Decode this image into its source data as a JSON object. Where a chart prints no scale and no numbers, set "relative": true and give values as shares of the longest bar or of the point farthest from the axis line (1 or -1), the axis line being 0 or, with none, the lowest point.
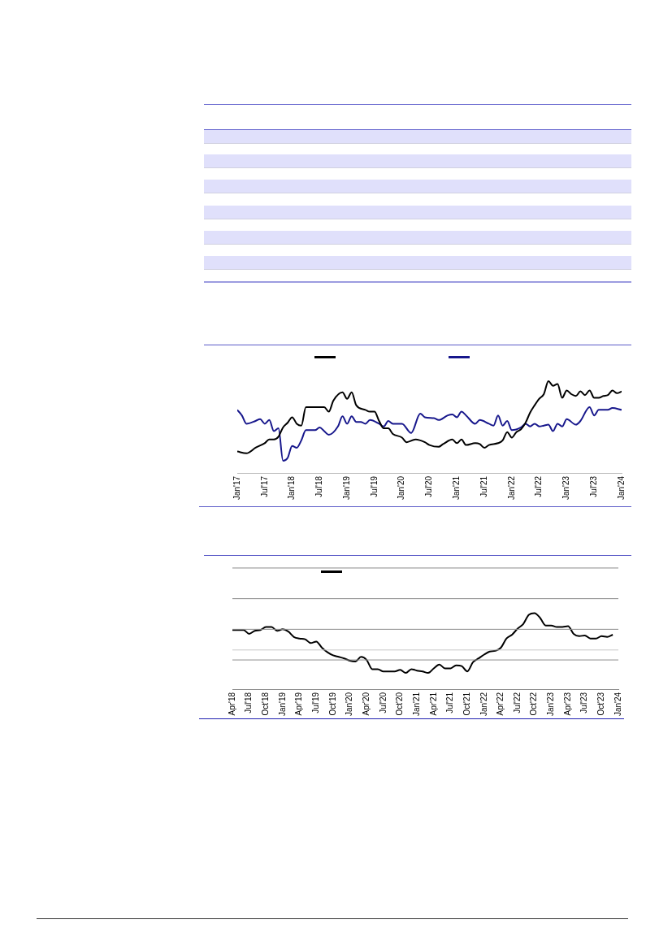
{
  "chart_data": [
    {
      "type": "line",
      "relative": true,
      "marker": "none",
      "line_style": "solid",
      "xlim": [
        "2017-01",
        "2024-01"
      ],
      "xticks": [
        {
          "value": "2017-01",
          "label": "Jan'17"
        },
        {
          "value": "2017-07",
          "label": "Jul'17"
        },
        {
          "value": "2018-01",
          "label": "Jan'18"
        },
        {
          "value": "2018-07",
          "label": "Jul'18"
        },
        {
          "value": "2019-01",
          "label": "Jan'19"
        },
        {
          "value": "2019-07",
          "label": "Jul'19"
        },
        {
          "value": "2020-01",
          "label": "Jan'20"
        },
        {
          "value": "2020-07",
          "label": "Jul'20"
        },
        {
          "value": "2021-01",
          "label": "Jan'21"
        },
        {
          "value": "2021-07",
          "label": "Jul'21"
        },
        {
          "value": "2022-01",
          "label": "Jan'22"
        },
        {
          "value": "2022-07",
          "label": "Jul'22"
        },
        {
          "value": "2023-01",
          "label": "Jan'23"
        },
        {
          "value": "2023-07",
          "label": "Jul'23"
        },
        {
          "value": "2024-01",
          "label": "Jan'24"
        }
      ],
      "series": [
        {
          "color": "#000000",
          "x": [
            "2017-01",
            "2017-03",
            "2017-05",
            "2017-07",
            "2017-08",
            "2017-09",
            "2017-10",
            "2017-11",
            "2017-12",
            "2018-01",
            "2018-02",
            "2018-03",
            "2018-04",
            "2018-06",
            "2018-08",
            "2018-09",
            "2018-10",
            "2018-12",
            "2019-01",
            "2019-02",
            "2019-03",
            "2019-05",
            "2019-06",
            "2019-07",
            "2019-08",
            "2019-09",
            "2019-10",
            "2019-11",
            "2020-01",
            "2020-02",
            "2020-04",
            "2020-06",
            "2020-07",
            "2020-09",
            "2020-10",
            "2020-12",
            "2021-01",
            "2021-02",
            "2021-03",
            "2021-05",
            "2021-06",
            "2021-07",
            "2021-08",
            "2021-10",
            "2021-11",
            "2021-12",
            "2022-01",
            "2022-02",
            "2022-03",
            "2022-04",
            "2022-05",
            "2022-06",
            "2022-07",
            "2022-08",
            "2022-09",
            "2022-10",
            "2022-11",
            "2022-12",
            "2023-01",
            "2023-02",
            "2023-03",
            "2023-04",
            "2023-05",
            "2023-06",
            "2023-07",
            "2023-08",
            "2023-09",
            "2023-10",
            "2023-11",
            "2023-12",
            "2024-01"
          ],
          "values": [
            0.24,
            0.22,
            0.28,
            0.33,
            0.37,
            0.37,
            0.4,
            0.5,
            0.55,
            0.61,
            0.54,
            0.52,
            0.72,
            0.72,
            0.72,
            0.67,
            0.79,
            0.88,
            0.81,
            0.88,
            0.74,
            0.69,
            0.67,
            0.67,
            0.57,
            0.49,
            0.49,
            0.43,
            0.39,
            0.34,
            0.37,
            0.34,
            0.31,
            0.29,
            0.32,
            0.37,
            0.33,
            0.37,
            0.31,
            0.33,
            0.32,
            0.28,
            0.31,
            0.33,
            0.36,
            0.45,
            0.39,
            0.45,
            0.48,
            0.55,
            0.66,
            0.74,
            0.81,
            0.86,
            1,
            0.95,
            0.97,
            0.82,
            0.9,
            0.86,
            0.84,
            0.89,
            0.85,
            0.9,
            0.82,
            0.82,
            0.84,
            0.85,
            0.9,
            0.87,
            0.89
          ]
        },
        {
          "color": "#17178c",
          "x": [
            "2017-01",
            "2017-02",
            "2017-03",
            "2017-05",
            "2017-06",
            "2017-07",
            "2017-08",
            "2017-09",
            "2017-10",
            "2017-11",
            "2017-12",
            "2018-01",
            "2018-02",
            "2018-03",
            "2018-04",
            "2018-06",
            "2018-07",
            "2018-08",
            "2018-09",
            "2018-11",
            "2018-12",
            "2019-01",
            "2019-02",
            "2019-03",
            "2019-04",
            "2019-05",
            "2019-06",
            "2019-08",
            "2019-09",
            "2019-10",
            "2019-11",
            "2019-12",
            "2020-01",
            "2020-03",
            "2020-05",
            "2020-06",
            "2020-08",
            "2020-09",
            "2020-11",
            "2020-12",
            "2021-01",
            "2021-02",
            "2021-03",
            "2021-05",
            "2021-06",
            "2021-08",
            "2021-09",
            "2021-10",
            "2021-11",
            "2021-12",
            "2022-01",
            "2022-03",
            "2022-04",
            "2022-05",
            "2022-06",
            "2022-07",
            "2022-08",
            "2022-09",
            "2022-10",
            "2022-11",
            "2022-12",
            "2023-01",
            "2023-03",
            "2023-04",
            "2023-06",
            "2023-07",
            "2023-08",
            "2023-10",
            "2023-11",
            "2024-01"
          ],
          "values": [
            0.69,
            0.63,
            0.54,
            0.57,
            0.59,
            0.54,
            0.58,
            0.46,
            0.49,
            0.14,
            0.17,
            0.3,
            0.28,
            0.36,
            0.47,
            0.47,
            0.5,
            0.46,
            0.42,
            0.51,
            0.62,
            0.54,
            0.62,
            0.56,
            0.56,
            0.54,
            0.58,
            0.54,
            0.51,
            0.57,
            0.54,
            0.54,
            0.54,
            0.44,
            0.65,
            0.61,
            0.6,
            0.58,
            0.63,
            0.64,
            0.61,
            0.67,
            0.63,
            0.54,
            0.58,
            0.54,
            0.52,
            0.63,
            0.52,
            0.57,
            0.47,
            0.5,
            0.54,
            0.51,
            0.54,
            0.51,
            0.52,
            0.53,
            0.46,
            0.54,
            0.51,
            0.59,
            0.53,
            0.57,
            0.72,
            0.63,
            0.69,
            0.69,
            0.71,
            0.69
          ]
        }
      ]
    },
    {
      "type": "line",
      "relative": true,
      "marker": "none",
      "line_style": "solid",
      "xlim": [
        "2018-04",
        "2024-01"
      ],
      "xticks": [
        {
          "value": "2018-04",
          "label": "Apr'18"
        },
        {
          "value": "2018-07",
          "label": "Jul'18"
        },
        {
          "value": "2018-10",
          "label": "Oct'18"
        },
        {
          "value": "2019-01",
          "label": "Jan'19"
        },
        {
          "value": "2019-04",
          "label": "Apr'19"
        },
        {
          "value": "2019-07",
          "label": "Jul'19"
        },
        {
          "value": "2019-10",
          "label": "Oct'19"
        },
        {
          "value": "2020-01",
          "label": "Jan'20"
        },
        {
          "value": "2020-04",
          "label": "Apr'20"
        },
        {
          "value": "2020-07",
          "label": "Jul'20"
        },
        {
          "value": "2020-10",
          "label": "Oct'20"
        },
        {
          "value": "2021-01",
          "label": "Jan'21"
        },
        {
          "value": "2021-04",
          "label": "Apr'21"
        },
        {
          "value": "2021-07",
          "label": "Jul'21"
        },
        {
          "value": "2021-10",
          "label": "Oct'21"
        },
        {
          "value": "2022-01",
          "label": "Jan'22"
        },
        {
          "value": "2022-04",
          "label": "Apr'22"
        },
        {
          "value": "2022-07",
          "label": "Jul'22"
        },
        {
          "value": "2022-10",
          "label": "Oct'22"
        },
        {
          "value": "2023-01",
          "label": "Jan'23"
        },
        {
          "value": "2023-04",
          "label": "Apr'23"
        },
        {
          "value": "2023-07",
          "label": "Jul'23"
        },
        {
          "value": "2023-10",
          "label": "Oct'23"
        },
        {
          "value": "2024-01",
          "label": "Jan'24"
        }
      ],
      "ref_lines": [
        {
          "axis": "y",
          "value": 0.39,
          "color": "#8c8c8c"
        },
        {
          "axis": "y",
          "value": 0.52,
          "color": "#c8c8c8"
        },
        {
          "axis": "y",
          "value": 0.79,
          "color": "#8c8c8c"
        },
        {
          "axis": "y",
          "value": 1.19,
          "color": "#8c8c8c"
        },
        {
          "axis": "y",
          "value": 1.59,
          "color": "#8c8c8c"
        }
      ],
      "series": [
        {
          "color": "#000000",
          "x": [
            "2018-04",
            "2018-05",
            "2018-06",
            "2018-07",
            "2018-08",
            "2018-09",
            "2018-10",
            "2018-11",
            "2018-12",
            "2019-01",
            "2019-02",
            "2019-03",
            "2019-04",
            "2019-05",
            "2019-06",
            "2019-07",
            "2019-08",
            "2019-09",
            "2019-10",
            "2019-11",
            "2019-12",
            "2020-01",
            "2020-02",
            "2020-03",
            "2020-04",
            "2020-05",
            "2020-06",
            "2020-07",
            "2020-08",
            "2020-09",
            "2020-10",
            "2020-11",
            "2020-12",
            "2021-01",
            "2021-02",
            "2021-03",
            "2021-04",
            "2021-05",
            "2021-06",
            "2021-07",
            "2021-08",
            "2021-09",
            "2021-10",
            "2021-11",
            "2021-12",
            "2022-01",
            "2022-02",
            "2022-03",
            "2022-04",
            "2022-05",
            "2022-06",
            "2022-07",
            "2022-08",
            "2022-09",
            "2022-10",
            "2022-11",
            "2022-12",
            "2023-01",
            "2023-02",
            "2023-03",
            "2023-04",
            "2023-05",
            "2023-06",
            "2023-07",
            "2023-08",
            "2023-09",
            "2023-10",
            "2023-11",
            "2023-12"
          ],
          "values": [
            0.78,
            0.78,
            0.78,
            0.73,
            0.77,
            0.78,
            0.82,
            0.82,
            0.77,
            0.79,
            0.76,
            0.69,
            0.67,
            0.66,
            0.61,
            0.63,
            0.55,
            0.49,
            0.45,
            0.43,
            0.41,
            0.38,
            0.37,
            0.43,
            0.39,
            0.27,
            0.27,
            0.24,
            0.24,
            0.24,
            0.26,
            0.22,
            0.27,
            0.25,
            0.24,
            0.22,
            0.28,
            0.33,
            0.28,
            0.28,
            0.32,
            0.31,
            0.24,
            0.36,
            0.41,
            0.46,
            0.5,
            0.51,
            0.55,
            0.67,
            0.72,
            0.8,
            0.86,
            0.98,
            1,
            0.94,
            0.84,
            0.84,
            0.82,
            0.82,
            0.83,
            0.73,
            0.7,
            0.71,
            0.67,
            0.67,
            0.7,
            0.69,
            0.72
          ]
        }
      ]
    }
  ]
}
